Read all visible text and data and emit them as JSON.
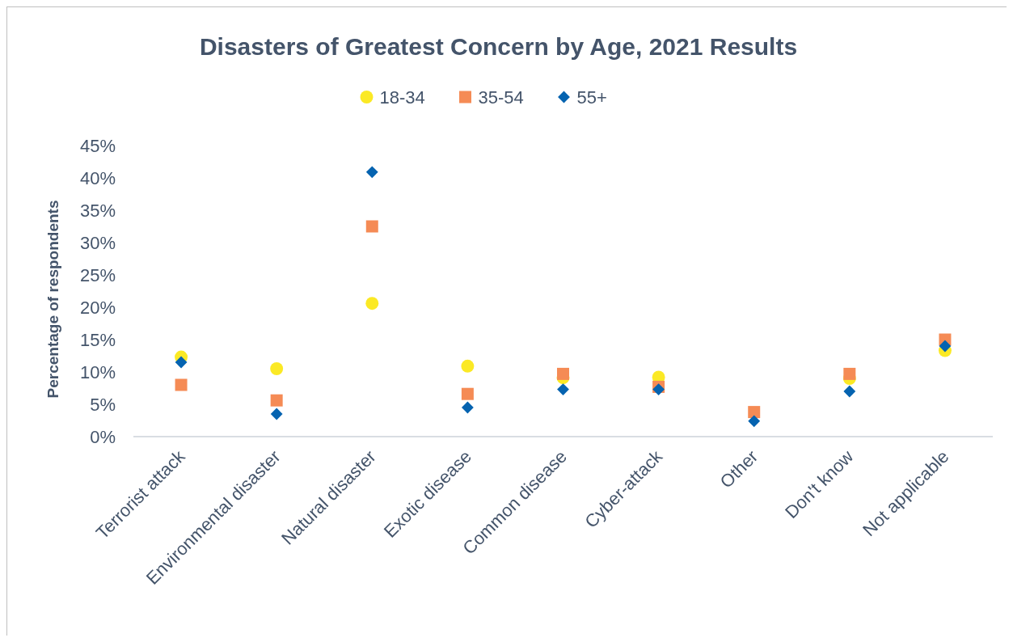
{
  "chart_data": {
    "type": "scatter",
    "title": "Disasters of Greatest Concern by Age, 2021 Results",
    "ylabel": "Percentage of respondents",
    "categories": [
      "Terrorist attack",
      "Environmental disaster",
      "Natural disaster",
      "Exotic disease",
      "Common disease",
      "Cyber-attack",
      "Other",
      "Don't know",
      "Not applicable"
    ],
    "series": [
      {
        "name": "18-34",
        "color": "#fbe925",
        "marker": "circle",
        "values": [
          12.3,
          10.5,
          20.6,
          10.9,
          9.1,
          9.2,
          null,
          9.0,
          13.3
        ]
      },
      {
        "name": "35-54",
        "color": "#f58b55",
        "marker": "square",
        "values": [
          8.0,
          5.6,
          32.5,
          6.6,
          9.7,
          7.7,
          3.8,
          9.7,
          15.0
        ]
      },
      {
        "name": "55+",
        "color": "#0563b0",
        "marker": "diamond",
        "values": [
          11.5,
          3.5,
          40.9,
          4.5,
          7.3,
          7.3,
          2.4,
          7.0,
          14.0
        ]
      }
    ],
    "ylim": [
      0,
      45
    ],
    "yticks": [
      {
        "value": 0,
        "label": "0%"
      },
      {
        "value": 5,
        "label": "5%"
      },
      {
        "value": 10,
        "label": "10%"
      },
      {
        "value": 15,
        "label": "15%"
      },
      {
        "value": 20,
        "label": "20%"
      },
      {
        "value": 25,
        "label": "25%"
      },
      {
        "value": 30,
        "label": "30%"
      },
      {
        "value": 35,
        "label": "35%"
      },
      {
        "value": 40,
        "label": "40%"
      },
      {
        "value": 45,
        "label": "45%"
      }
    ],
    "legend": "top",
    "grid": false
  }
}
